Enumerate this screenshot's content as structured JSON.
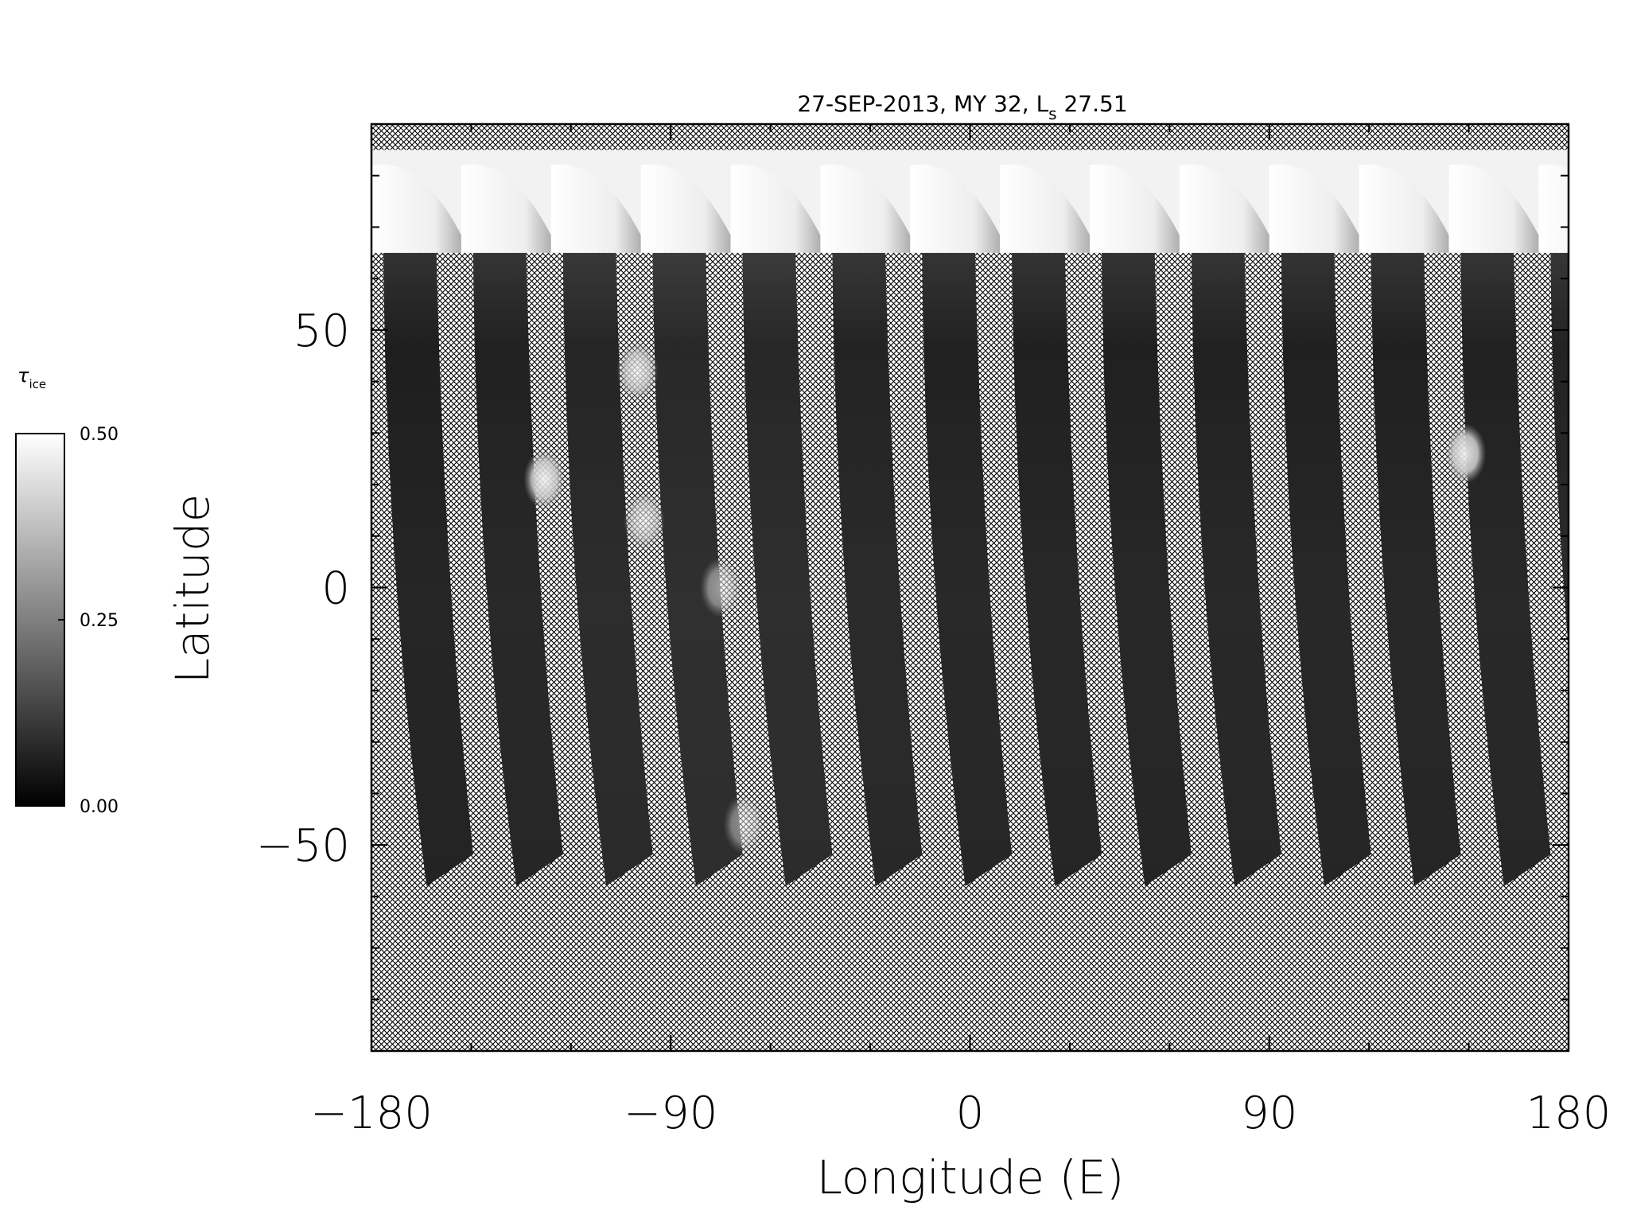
{
  "chart_data": {
    "type": "heatmap",
    "title": {
      "prefix": "27-SEP-2013, MY 32,  L",
      "subscript": "s",
      "suffix": " 27.51"
    },
    "xlabel": "Longitude (E)",
    "ylabel": "Latitude",
    "xlim": [
      -180,
      180
    ],
    "ylim": [
      -90,
      90
    ],
    "x_ticks": [
      -180,
      -90,
      0,
      90,
      180
    ],
    "x_tick_labels": [
      "−180",
      "−90",
      "0",
      "90",
      "180"
    ],
    "y_ticks": [
      -50,
      0,
      50
    ],
    "y_tick_labels": [
      "−50",
      "0",
      "50"
    ],
    "x_minor_step": 30,
    "y_minor_step": 10,
    "colorbar": {
      "label_symbol": "τ",
      "label_subscript": "ice",
      "min": 0.0,
      "max": 0.5,
      "ticks": [
        0.0,
        0.25,
        0.5
      ],
      "tick_labels": [
        "0.00",
        "0.25",
        "0.50"
      ],
      "colormap": "grayscale",
      "low_color": "#000000",
      "high_color": "#ffffff"
    },
    "no_data_pattern": "crosshatch",
    "polar_cap_ice_north_of_lat": 65,
    "data_coverage_lat": [
      -58,
      85
    ],
    "swaths": [
      {
        "center_lon": -180,
        "value": 0.06
      },
      {
        "center_lon": -153,
        "value": 0.08
      },
      {
        "center_lon": -126,
        "value": 0.1
      },
      {
        "center_lon": -99,
        "value": 0.12
      },
      {
        "center_lon": -72,
        "value": 0.11
      },
      {
        "center_lon": -45,
        "value": 0.09
      },
      {
        "center_lon": -18,
        "value": 0.08
      },
      {
        "center_lon": 9,
        "value": 0.07
      },
      {
        "center_lon": 36,
        "value": 0.07
      },
      {
        "center_lon": 63,
        "value": 0.08
      },
      {
        "center_lon": 90,
        "value": 0.07
      },
      {
        "center_lon": 117,
        "value": 0.07
      },
      {
        "center_lon": 144,
        "value": 0.08
      },
      {
        "center_lon": 171,
        "value": 0.09
      }
    ],
    "clouds": [
      {
        "lon": -128,
        "lat": 21,
        "value": 0.45
      },
      {
        "lon": -100,
        "lat": 42,
        "value": 0.38
      },
      {
        "lon": -98,
        "lat": 13,
        "value": 0.32
      },
      {
        "lon": -75,
        "lat": 0,
        "value": 0.28
      },
      {
        "lon": 149,
        "lat": 26,
        "value": 0.45
      },
      {
        "lon": -68,
        "lat": -46,
        "value": 0.25
      }
    ]
  }
}
